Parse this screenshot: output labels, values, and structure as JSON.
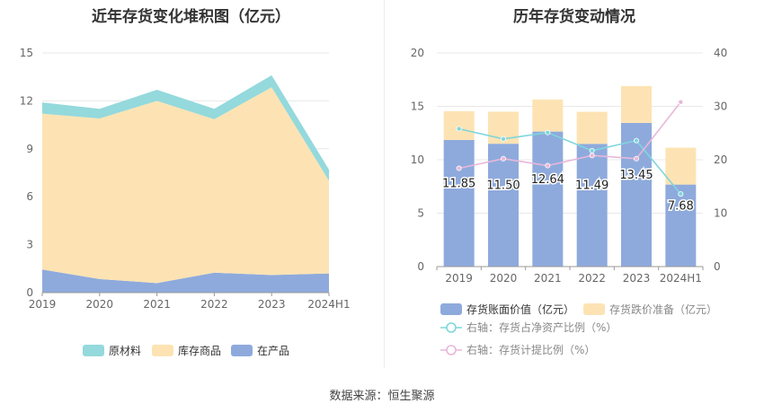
{
  "footer": {
    "source": "数据来源：恒生聚源"
  },
  "chart_data": [
    {
      "type": "area",
      "stacked": true,
      "title": "近年存货变化堆积图（亿元）",
      "categories": [
        "2019",
        "2020",
        "2021",
        "2022",
        "2023",
        "2024H1"
      ],
      "ylim": [
        0,
        15
      ],
      "yticks": [
        "0",
        "3",
        "6",
        "9",
        "12",
        "15"
      ],
      "grid": true,
      "legend_position": "bottom",
      "series": [
        {
          "name": "在产品",
          "color": "#8eaadc",
          "values": [
            1.45,
            0.85,
            0.6,
            1.25,
            1.1,
            1.2
          ]
        },
        {
          "name": "库存商品",
          "color": "#fde3b3",
          "values": [
            9.75,
            10.05,
            11.4,
            9.6,
            11.75,
            5.8
          ]
        },
        {
          "name": "原材料",
          "color": "#94d9dc",
          "values": [
            0.7,
            0.6,
            0.7,
            0.65,
            0.75,
            0.7
          ]
        }
      ],
      "legend_order": [
        "原材料",
        "库存商品",
        "在产品"
      ]
    },
    {
      "type": "bar",
      "stacked": true,
      "title": "历年存货变动情况",
      "categories": [
        "2019",
        "2020",
        "2021",
        "2022",
        "2023",
        "2024H1"
      ],
      "ylim": [
        0,
        20
      ],
      "yticks": [
        "0",
        "5",
        "10",
        "15",
        "20"
      ],
      "y2lim": [
        0,
        40
      ],
      "y2ticks": [
        "0",
        "10",
        "20",
        "30",
        "40"
      ],
      "grid": true,
      "legend_position": "bottom",
      "series": [
        {
          "name": "存货账面价值（亿元）",
          "color": "#8eaadc",
          "axis": "left",
          "values": [
            11.85,
            11.5,
            12.64,
            11.49,
            13.45,
            7.68
          ],
          "labels": [
            "11.85",
            "11.50",
            "12.64",
            "11.49",
            "13.45",
            "7.68"
          ]
        },
        {
          "name": "存货跌价准备（亿元）",
          "color": "#fde3b3",
          "axis": "left",
          "values": [
            2.7,
            3.0,
            3.0,
            3.0,
            3.45,
            3.45
          ]
        },
        {
          "name": "右轴：存货占净资产比例（%）",
          "color": "#7fd6dc",
          "axis": "right",
          "line": true,
          "values": [
            25.8,
            23.9,
            25.1,
            21.7,
            23.6,
            13.6
          ]
        },
        {
          "name": "右轴：存货计提比例（%）",
          "color": "#e8b7d9",
          "axis": "right",
          "line": true,
          "values": [
            18.4,
            20.2,
            18.9,
            20.8,
            20.2,
            30.8
          ]
        }
      ]
    }
  ]
}
